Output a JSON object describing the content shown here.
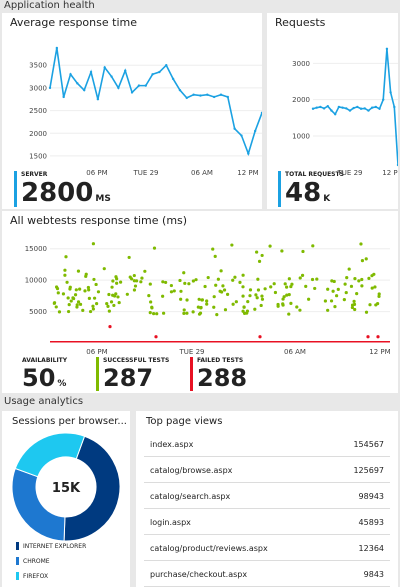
{
  "app_health": {
    "header": "Application health"
  },
  "response_tile": {
    "title": "Average response time",
    "metric_label": "SERVER",
    "metric_value": "2800",
    "metric_unit": "MS",
    "accent": "#1ba1e2"
  },
  "requests_tile": {
    "title": "Requests",
    "metric_label": "TOTAL REQUESTS",
    "metric_value": "48",
    "metric_unit": "K",
    "accent": "#1ba1e2"
  },
  "webtests_tile": {
    "title": "All webtests response time (ms)",
    "availability_label": "AVAILABILITY",
    "availability_value": "50",
    "availability_unit": "%",
    "successful_label": "SUCCESSFUL TESTS",
    "successful_value": "287",
    "failed_label": "FAILED TESTS",
    "failed_value": "288",
    "success_color": "#7fba00",
    "fail_color": "#e81123"
  },
  "usage": {
    "header": "Usage analytics"
  },
  "sessions_tile": {
    "title": "Sessions per browser...",
    "center_label": "15K",
    "legend": [
      "INTERNET EXPLORER",
      "CHROME",
      "FIREFOX"
    ],
    "colors": [
      "#003a80",
      "#1e78d0",
      "#1ec8f0"
    ]
  },
  "pageviews_tile": {
    "title": "Top page views",
    "rows": [
      {
        "page": "index.aspx",
        "views": "154567"
      },
      {
        "page": "catalog/browse.aspx",
        "views": "125697"
      },
      {
        "page": "catalog/search.aspx",
        "views": "98943"
      },
      {
        "page": "login.aspx",
        "views": "45893"
      },
      {
        "page": "catalog/product/reviews.aspx",
        "views": "12364"
      },
      {
        "page": "purchase/checkout.aspx",
        "views": "9843"
      }
    ]
  },
  "chart_data": [
    {
      "type": "line",
      "title": "Average response time",
      "x_ticks": [
        "06 PM",
        "TUE 29",
        "06 AM",
        "12 PM"
      ],
      "y_ticks": [
        1500,
        2000,
        2500,
        3000,
        3500
      ],
      "ylim": [
        1300,
        4100
      ],
      "series": [
        {
          "values": [
            3000,
            3880,
            2800,
            3300,
            3100,
            2950,
            3350,
            2750,
            3450,
            3250,
            3000,
            3380,
            2900,
            3050,
            3050,
            3300,
            3350,
            3500,
            3200,
            2950,
            2780,
            2850,
            2830,
            2850,
            2800,
            2850,
            2800,
            2100,
            1950,
            1550,
            2050,
            2450
          ]
        }
      ]
    },
    {
      "type": "line",
      "title": "Requests",
      "x_ticks": [
        "TUE 29",
        "12 PM"
      ],
      "y_ticks": [
        1000,
        2000,
        3000
      ],
      "ylim": [
        200,
        3700
      ],
      "series": [
        {
          "values": [
            1750,
            1780,
            1800,
            1760,
            1820,
            1700,
            1600,
            1800,
            1780,
            1760,
            1700,
            1770,
            1800,
            1750,
            1760,
            1700,
            1780,
            1800,
            1750,
            2000,
            3400,
            2200,
            1800,
            200
          ]
        }
      ]
    },
    {
      "type": "scatter",
      "title": "All webtests response time (ms)",
      "x_ticks": [
        "06 PM",
        "TUE 29",
        "06 AM",
        "12 PM"
      ],
      "y_ticks": [
        5000,
        10000,
        15000
      ],
      "ylim": [
        0,
        17500
      ],
      "series": [
        {
          "name": "successful",
          "points": 230,
          "typical": 7500,
          "range": [
            3800,
            16000
          ]
        },
        {
          "name": "failed",
          "points": 60,
          "typical": 200
        }
      ]
    },
    {
      "type": "pie",
      "title": "Sessions per browser...",
      "categories": [
        "INTERNET EXPLORER",
        "CHROME",
        "FIREFOX"
      ],
      "values": [
        45,
        30,
        25
      ]
    }
  ]
}
